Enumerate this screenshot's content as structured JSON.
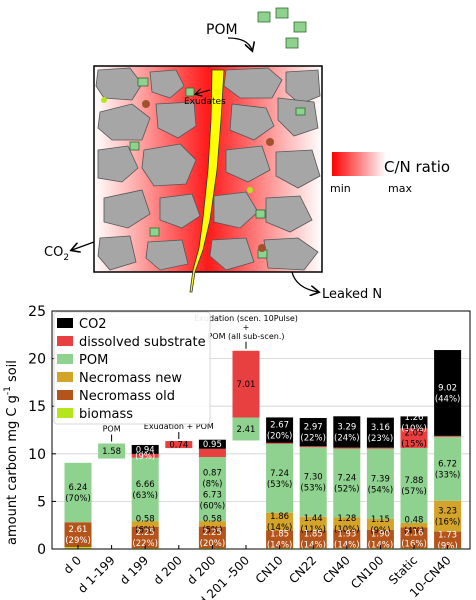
{
  "schematic": {
    "pom_label": "POM",
    "exudates_label": "Exudates",
    "co2_label": "CO",
    "co2_sub": "2",
    "leaked_label": "Leaked N",
    "cn_title": "C/N ratio",
    "cn_min": "min",
    "cn_max": "max",
    "colors": {
      "grain": "#a6a6a6",
      "root": "#ffff00",
      "pom": "#8fd18f",
      "necromass": "#a0522d",
      "biomass": "#b5e61d",
      "gradient": "#ff0000"
    }
  },
  "chart_data": {
    "type": "bar",
    "stacked": true,
    "ylabel": "amount carbon mg C g",
    "ylabel_sup": "-1",
    "ylabel_tail": " soil",
    "ylim": [
      0,
      25
    ],
    "yticks": [
      "0",
      "5",
      "10",
      "15",
      "20",
      "25"
    ],
    "grid": true,
    "legend_position": "top-left",
    "categories": [
      "d 0",
      "d 1-199",
      "d 199",
      "d 200",
      "d 200",
      "d 201 -500",
      "CN10",
      "CN22",
      "CN40",
      "CN100",
      "Static",
      "10-CN40"
    ],
    "series": [
      {
        "name": "biomass",
        "color": "#b5e61d",
        "values": [
          0.2,
          0,
          0.1,
          0,
          0.1,
          0,
          0.1,
          0.1,
          0.1,
          0.1,
          0.1,
          0.1
        ]
      },
      {
        "name": "Necromass old",
        "color": "#b5541a",
        "values": [
          2.61,
          0,
          2.25,
          0,
          2.25,
          0,
          1.85,
          1.85,
          1.93,
          1.9,
          2.16,
          1.73
        ]
      },
      {
        "name": "Necromass new",
        "color": "#d4a32a",
        "values": [
          0,
          0,
          0.58,
          0,
          0.58,
          0,
          1.86,
          1.44,
          1.28,
          1.15,
          0.48,
          3.23
        ]
      },
      {
        "name": "POM",
        "color": "#8fd18f",
        "values": [
          6.24,
          1.58,
          6.66,
          0,
          6.73,
          2.41,
          7.24,
          7.3,
          7.24,
          7.39,
          7.88,
          6.72
        ]
      },
      {
        "name": "dissolved substrate",
        "color": "#e84040",
        "values": [
          0,
          0,
          0.4,
          0.74,
          0.87,
          7.01,
          0.1,
          0.1,
          0.1,
          0.1,
          2.05,
          0.1
        ]
      },
      {
        "name": "CO2",
        "color": "#000000",
        "values": [
          0,
          0,
          0.94,
          0,
          0.95,
          0,
          2.67,
          2.97,
          3.29,
          3.16,
          1.26,
          9.02
        ]
      }
    ],
    "bases": [
      0,
      9.5,
      0,
      10.6,
      0,
      11.4,
      0,
      0,
      0,
      0,
      0,
      0
    ],
    "labels": [
      {
        "cat": 0,
        "series": "POM",
        "lines": [
          "6.24",
          "(70%)"
        ],
        "color": "#000000"
      },
      {
        "cat": 0,
        "series": "Necromass old",
        "lines": [
          "2.61",
          "(29%)"
        ],
        "color": "#ffffff"
      },
      {
        "cat": 1,
        "series": "POM",
        "lines": [
          "1.58"
        ],
        "color": "#000000"
      },
      {
        "cat": 2,
        "series": "CO2",
        "lines": [
          "0.94"
        ],
        "color": "#ffffff"
      },
      {
        "cat": 2,
        "series": "dissolved substrate",
        "lines": [
          "(9%)"
        ],
        "color": "#ffffff"
      },
      {
        "cat": 2,
        "series": "POM",
        "lines": [
          "6.66",
          "(63%)"
        ],
        "color": "#000000"
      },
      {
        "cat": 2,
        "series": "Necromass new",
        "lines": [
          "0.58",
          "(6%)"
        ],
        "color": "#000000"
      },
      {
        "cat": 2,
        "series": "Necromass old",
        "lines": [
          "2.25",
          "(22%)"
        ],
        "color": "#ffffff"
      },
      {
        "cat": 3,
        "series": "dissolved substrate",
        "lines": [
          "0.74"
        ],
        "color": "#000000"
      },
      {
        "cat": 4,
        "series": "CO2",
        "lines": [
          "0.95"
        ],
        "color": "#ffffff"
      },
      {
        "cat": 4,
        "series": "POM",
        "lines": [
          "0.87",
          "(8%)",
          "6.73",
          "(60%)"
        ],
        "color": "#000000"
      },
      {
        "cat": 4,
        "series": "Necromass new",
        "lines": [
          "0.58",
          "(5%)"
        ],
        "color": "#000000"
      },
      {
        "cat": 4,
        "series": "Necromass old",
        "lines": [
          "2.25",
          "(20%)"
        ],
        "color": "#ffffff"
      },
      {
        "cat": 5,
        "series": "dissolved substrate",
        "lines": [
          "7.01"
        ],
        "color": "#000000"
      },
      {
        "cat": 5,
        "series": "POM",
        "lines": [
          "2.41"
        ],
        "color": "#000000"
      },
      {
        "cat": 6,
        "series": "CO2",
        "lines": [
          "2.67",
          "(20%)"
        ],
        "color": "#ffffff"
      },
      {
        "cat": 6,
        "series": "POM",
        "lines": [
          "7.24",
          "(53%)"
        ],
        "color": "#000000"
      },
      {
        "cat": 6,
        "series": "Necromass new",
        "lines": [
          "1.86",
          "(14%)"
        ],
        "color": "#000000"
      },
      {
        "cat": 6,
        "series": "Necromass old",
        "lines": [
          "1.85",
          "(14%)"
        ],
        "color": "#ffffff"
      },
      {
        "cat": 7,
        "series": "CO2",
        "lines": [
          "2.97",
          "(22%)"
        ],
        "color": "#ffffff"
      },
      {
        "cat": 7,
        "series": "POM",
        "lines": [
          "7.30",
          "(53%)"
        ],
        "color": "#000000"
      },
      {
        "cat": 7,
        "series": "Necromass new",
        "lines": [
          "1.44",
          "(11%)"
        ],
        "color": "#000000"
      },
      {
        "cat": 7,
        "series": "Necromass old",
        "lines": [
          "1.85",
          "(14%)"
        ],
        "color": "#ffffff"
      },
      {
        "cat": 8,
        "series": "CO2",
        "lines": [
          "3.29",
          "(24%)"
        ],
        "color": "#ffffff"
      },
      {
        "cat": 8,
        "series": "POM",
        "lines": [
          "7.24",
          "(52%)"
        ],
        "color": "#000000"
      },
      {
        "cat": 8,
        "series": "Necromass new",
        "lines": [
          "1.28",
          "(10%)"
        ],
        "color": "#000000"
      },
      {
        "cat": 8,
        "series": "Necromass old",
        "lines": [
          "1.93",
          "(14%)"
        ],
        "color": "#ffffff"
      },
      {
        "cat": 9,
        "series": "CO2",
        "lines": [
          "3.16",
          "(23%)"
        ],
        "color": "#ffffff"
      },
      {
        "cat": 9,
        "series": "POM",
        "lines": [
          "7.39",
          "(54%)"
        ],
        "color": "#000000"
      },
      {
        "cat": 9,
        "series": "Necromass new",
        "lines": [
          "1.15",
          "(9%)"
        ],
        "color": "#000000"
      },
      {
        "cat": 9,
        "series": "Necromass old",
        "lines": [
          "1.90",
          "(14%)"
        ],
        "color": "#ffffff"
      },
      {
        "cat": 10,
        "series": "CO2",
        "lines": [
          "1.26",
          "(10%)"
        ],
        "color": "#ffffff"
      },
      {
        "cat": 10,
        "series": "dissolved substrate",
        "lines": [
          "2.05",
          "(15%)"
        ],
        "color": "#000000"
      },
      {
        "cat": 10,
        "series": "POM",
        "lines": [
          "7.88",
          "(57%)"
        ],
        "color": "#000000"
      },
      {
        "cat": 10,
        "series": "Necromass new",
        "lines": [
          "0.48",
          "(4%)"
        ],
        "color": "#000000"
      },
      {
        "cat": 10,
        "series": "Necromass old",
        "lines": [
          "2.16",
          "(16%)"
        ],
        "color": "#ffffff"
      },
      {
        "cat": 11,
        "series": "CO2",
        "lines": [
          "9.02",
          "(44%)"
        ],
        "color": "#ffffff"
      },
      {
        "cat": 11,
        "series": "POM",
        "lines": [
          "6.72",
          "(33%)"
        ],
        "color": "#000000"
      },
      {
        "cat": 11,
        "series": "Necromass new",
        "lines": [
          "3.23",
          "(16%)"
        ],
        "color": "#000000"
      },
      {
        "cat": 11,
        "series": "Necromass old",
        "lines": [
          "1.73",
          "(9%)"
        ],
        "color": "#ffffff"
      }
    ],
    "annotations": [
      {
        "cat": 1,
        "lines": [
          "POM"
        ]
      },
      {
        "cat": 3,
        "lines": [
          "Exudation + POM"
        ]
      },
      {
        "cat": 5,
        "lines": [
          "Exudation (scen. 10Pulse)",
          "+",
          "POM (all sub-scen.)"
        ]
      }
    ]
  }
}
